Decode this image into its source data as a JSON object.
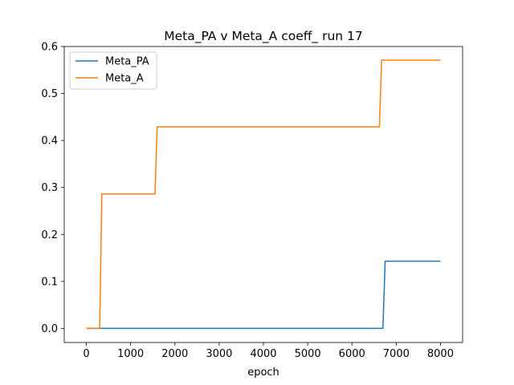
{
  "chart_data": {
    "type": "line",
    "title": "Meta_PA v Meta_A coeff_ run 17",
    "xlabel": "epoch",
    "ylabel": "",
    "xlim": [
      -500,
      8500
    ],
    "ylim": [
      -0.03,
      0.6
    ],
    "xticks": [
      0,
      1000,
      2000,
      3000,
      4000,
      5000,
      6000,
      7000,
      8000
    ],
    "yticks": [
      0.0,
      0.1,
      0.2,
      0.3,
      0.4,
      0.5,
      0.6
    ],
    "xtick_labels": [
      "0",
      "1000",
      "2000",
      "3000",
      "4000",
      "5000",
      "6000",
      "7000",
      "8000"
    ],
    "ytick_labels": [
      "0.0",
      "0.1",
      "0.2",
      "0.3",
      "0.4",
      "0.5",
      "0.6"
    ],
    "legend_position": "top-left",
    "grid": false,
    "series": [
      {
        "name": "Meta_PA",
        "color": "#1f77b4",
        "x": [
          0,
          6700,
          6750,
          8000
        ],
        "y": [
          0.0,
          0.0,
          0.143,
          0.143
        ]
      },
      {
        "name": "Meta_A",
        "color": "#ff7f0e",
        "x": [
          0,
          300,
          350,
          1550,
          1600,
          6620,
          6670,
          8000
        ],
        "y": [
          0.0,
          0.0,
          0.286,
          0.286,
          0.429,
          0.429,
          0.571,
          0.571
        ]
      }
    ]
  }
}
